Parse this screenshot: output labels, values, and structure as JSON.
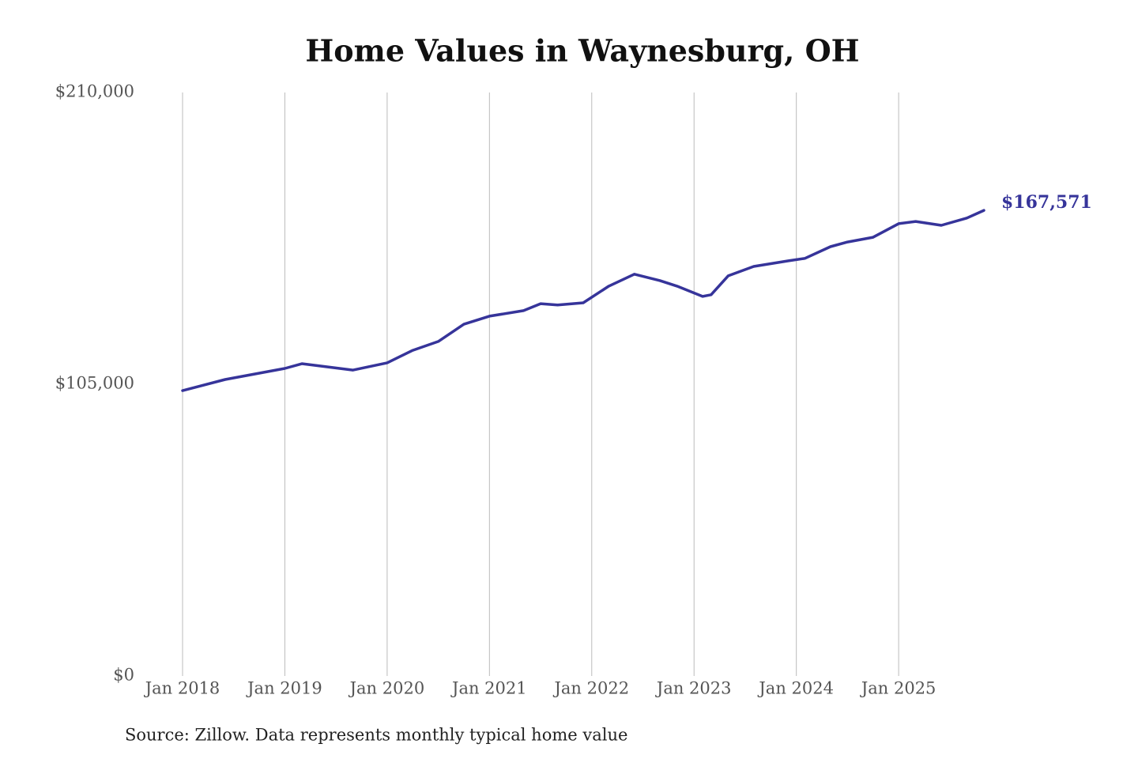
{
  "chart_data": {
    "type": "line",
    "title": "Home Values in Waynesburg, OH",
    "source": "Source: Zillow. Data represents monthly typical home value",
    "x": [
      "2018-01",
      "2018-06",
      "2019-01",
      "2019-03",
      "2019-09",
      "2020-01",
      "2020-04",
      "2020-07",
      "2020-10",
      "2021-01",
      "2021-05",
      "2021-07",
      "2021-09",
      "2021-12",
      "2022-03",
      "2022-06",
      "2022-09",
      "2022-11",
      "2023-02",
      "2023-03",
      "2023-05",
      "2023-08",
      "2023-12",
      "2024-02",
      "2024-05",
      "2024-07",
      "2024-10",
      "2025-01",
      "2025-03",
      "2025-06",
      "2025-09",
      "2025-11"
    ],
    "series": [
      {
        "name": "Home value",
        "color": "#36349a",
        "values": [
          102700,
          106700,
          110700,
          112400,
          110100,
          112700,
          117200,
          120400,
          126600,
          129500,
          131500,
          134000,
          133500,
          134300,
          140300,
          144600,
          142300,
          140300,
          136600,
          137200,
          144000,
          147400,
          149400,
          150300,
          154500,
          156200,
          157900,
          162800,
          163600,
          162200,
          164800,
          167571
        ],
        "value_labels": [
          null,
          null,
          null,
          null,
          null,
          null,
          null,
          null,
          null,
          null,
          null,
          null,
          null,
          null,
          null,
          null,
          null,
          null,
          null,
          null,
          null,
          null,
          null,
          null,
          null,
          null,
          null,
          null,
          null,
          null,
          null,
          "$167,571"
        ]
      }
    ],
    "xlim": [
      "2018-01",
      "2025-11"
    ],
    "xticks": [
      {
        "value": "2018-01",
        "label": "Jan 2018"
      },
      {
        "value": "2019-01",
        "label": "Jan 2019"
      },
      {
        "value": "2020-01",
        "label": "Jan 2020"
      },
      {
        "value": "2021-01",
        "label": "Jan 2021"
      },
      {
        "value": "2022-01",
        "label": "Jan 2022"
      },
      {
        "value": "2023-01",
        "label": "Jan 2023"
      },
      {
        "value": "2024-01",
        "label": "Jan 2024"
      },
      {
        "value": "2025-01",
        "label": "Jan 2025"
      }
    ],
    "ylim": [
      0,
      210000
    ],
    "yticks": [
      {
        "value": 0,
        "label": "$0"
      },
      {
        "value": 105000,
        "label": "$105,000"
      },
      {
        "value": 210000,
        "label": "$210,000"
      }
    ],
    "grid": "x"
  }
}
